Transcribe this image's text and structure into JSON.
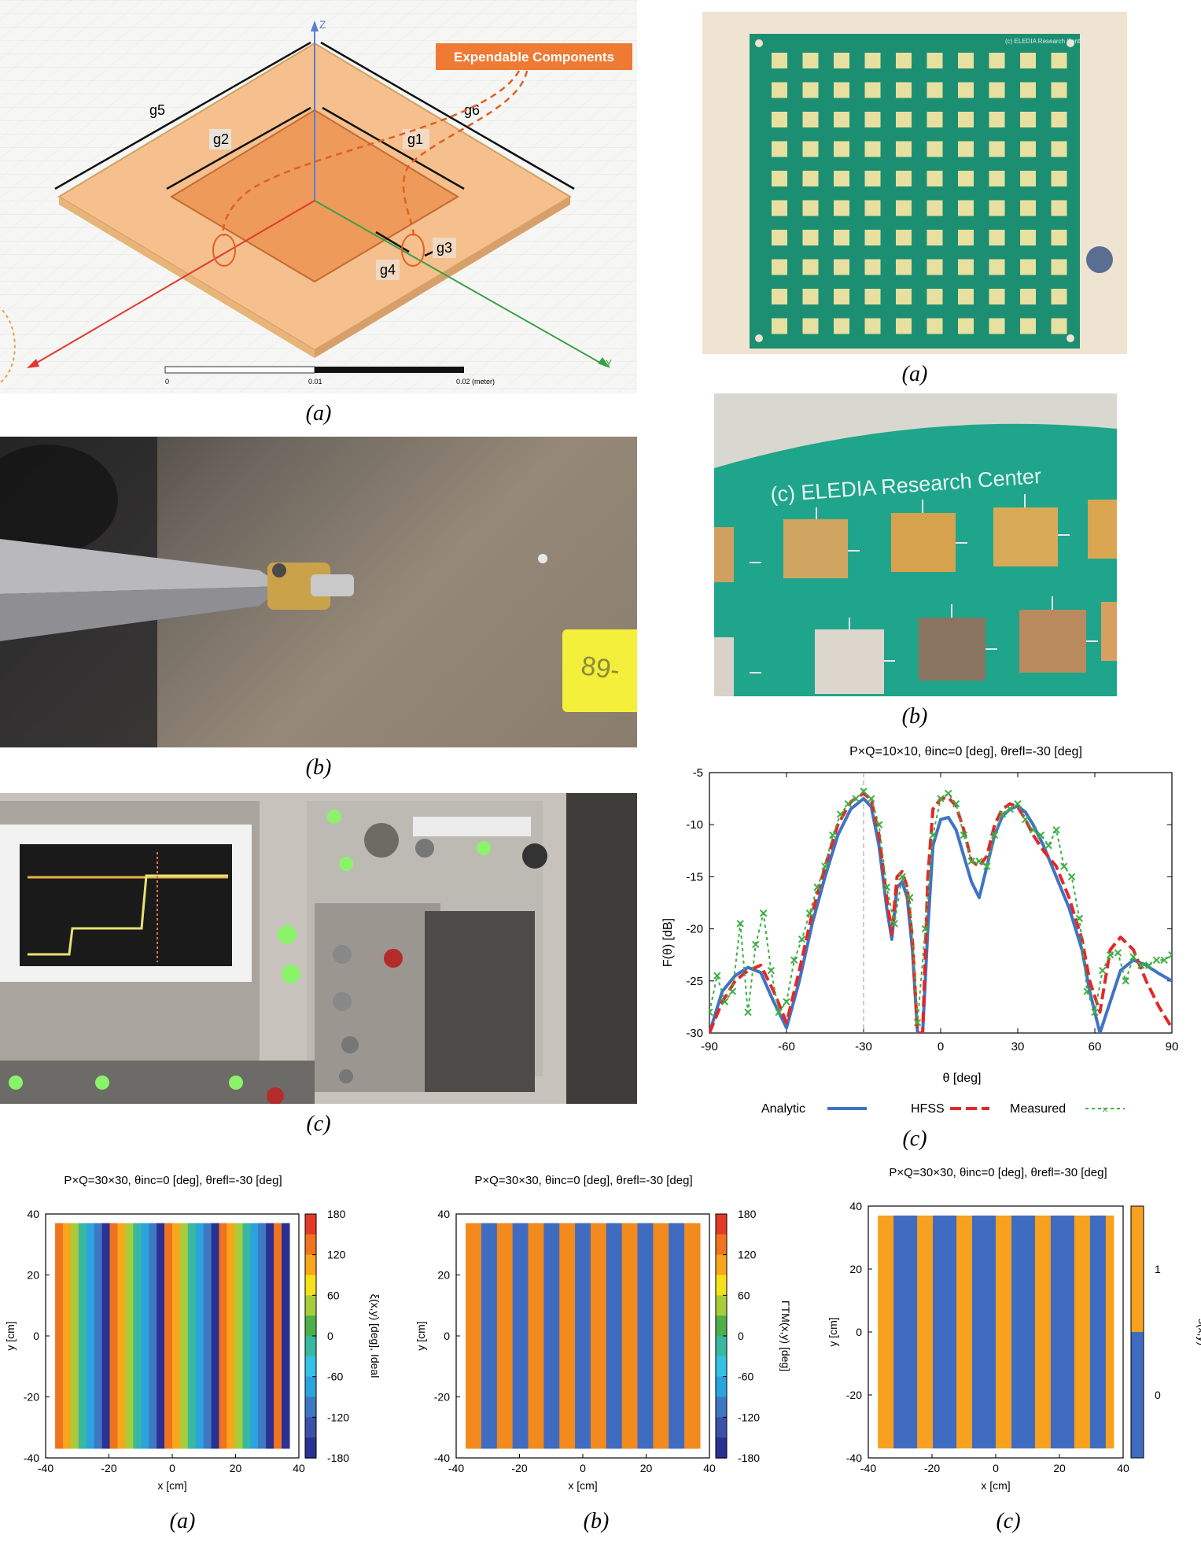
{
  "captions": {
    "top_left_a": "(a)",
    "top_left_b": "(b)",
    "top_left_c": "(c)",
    "top_right_a": "(a)",
    "top_right_b": "(b)",
    "top_right_c": "(c)",
    "bottom_a": "(a)",
    "bottom_b": "(b)",
    "bottom_c": "(c)"
  },
  "cad": {
    "callout": "Expendable Components",
    "labels": [
      "g5",
      "g6",
      "g2",
      "g1",
      "g3",
      "g4"
    ],
    "axis_z": "Z",
    "axis_y": "Y",
    "scale_labels": [
      "0",
      "0.01",
      "0.02 (meter)"
    ]
  },
  "board_text": "(c) ELEDIA Research Center",
  "board_text_small": "(c) ELEDIA Research Center",
  "sticker_text": "89-",
  "colors": {
    "substrate": "#f5c08d",
    "patch": "#ee9a5a",
    "callout_bg": "#ee7a34",
    "pcb_green": "#1c8f73",
    "analytic": "#3f73c4",
    "hfss": "#e32828",
    "measured": "#3cb043",
    "blue_state": "#3f6bc0",
    "orange_state": "#f28a1e"
  },
  "chart_data": [
    {
      "type": "line",
      "title": "P×Q=10×10, θinc=0 [deg], θrefl=-30 [deg]",
      "xlabel": "θ [deg]",
      "ylabel": "F(θ) [dB]",
      "xlim": [
        -90,
        90
      ],
      "ylim": [
        -30,
        -5
      ],
      "xticks": [
        -90,
        -60,
        -30,
        0,
        30,
        60,
        90
      ],
      "yticks": [
        -5,
        -10,
        -15,
        -20,
        -25,
        -30
      ],
      "legend_position": "bottom",
      "series": [
        {
          "name": "Analytic",
          "x": [
            -90,
            -85,
            -80,
            -75,
            -70,
            -65,
            -60,
            -55,
            -50,
            -45,
            -40,
            -35,
            -30,
            -27,
            -24,
            -21,
            -19,
            -17,
            -15,
            -13,
            -11,
            -9,
            -7,
            -5,
            -3,
            0,
            3,
            6,
            9,
            12,
            15,
            18,
            21,
            24,
            27,
            30,
            33,
            36,
            40,
            45,
            50,
            55,
            58,
            62,
            66,
            70,
            75,
            80,
            85,
            90
          ],
          "y": [
            -30,
            -26,
            -24.5,
            -23.7,
            -24.2,
            -27,
            -29.5,
            -25,
            -19.5,
            -15,
            -11,
            -8.5,
            -7.5,
            -8.3,
            -12,
            -18,
            -21,
            -16,
            -15.5,
            -17,
            -22,
            -30,
            -30,
            -20,
            -12,
            -9.5,
            -9.3,
            -10.5,
            -13,
            -15.5,
            -17,
            -14,
            -11,
            -9.2,
            -8.5,
            -8.2,
            -8.8,
            -10,
            -12,
            -15,
            -18,
            -22,
            -26,
            -30,
            -27,
            -24,
            -23,
            -23.5,
            -24.3,
            -25
          ]
        },
        {
          "name": "HFSS",
          "x": [
            -90,
            -85,
            -80,
            -75,
            -70,
            -65,
            -60,
            -55,
            -50,
            -45,
            -40,
            -35,
            -30,
            -27,
            -24,
            -21,
            -19,
            -17,
            -15,
            -13,
            -11,
            -9,
            -7,
            -5,
            -3,
            0,
            3,
            6,
            9,
            12,
            15,
            18,
            21,
            24,
            27,
            30,
            33,
            36,
            40,
            45,
            50,
            55,
            58,
            62,
            66,
            70,
            75,
            80,
            85,
            90
          ],
          "y": [
            -30,
            -27,
            -25,
            -24,
            -23.5,
            -26,
            -29,
            -24,
            -18.5,
            -14,
            -10,
            -7.8,
            -7,
            -7.6,
            -11,
            -17,
            -20.5,
            -15,
            -14.5,
            -16,
            -21,
            -30,
            -30,
            -15,
            -8.5,
            -7.5,
            -7.4,
            -8.2,
            -10.5,
            -13.5,
            -14,
            -13,
            -10,
            -8.5,
            -8,
            -8.3,
            -9.5,
            -11,
            -12.5,
            -14,
            -17,
            -21,
            -25,
            -28,
            -22,
            -20.8,
            -22,
            -25,
            -27.5,
            -29.5
          ]
        },
        {
          "name": "Measured",
          "x": [
            -90,
            -87,
            -84,
            -81,
            -78,
            -75,
            -72,
            -69,
            -66,
            -63,
            -60,
            -57,
            -54,
            -51,
            -48,
            -45,
            -42,
            -39,
            -36,
            -33,
            -30,
            -27,
            -24,
            -21,
            -18,
            -15,
            -12,
            -9,
            -6,
            -3,
            0,
            3,
            6,
            9,
            12,
            15,
            18,
            21,
            24,
            27,
            30,
            33,
            36,
            39,
            42,
            45,
            48,
            51,
            54,
            57,
            60,
            63,
            66,
            69,
            72,
            75,
            78,
            81,
            84,
            87,
            90
          ],
          "y": [
            -28,
            -24.5,
            -27,
            -26,
            -19.5,
            -28,
            -21.5,
            -18.5,
            -24,
            -28,
            -27,
            -23,
            -21,
            -18.5,
            -16,
            -14,
            -11,
            -9,
            -8,
            -7.5,
            -6.8,
            -7.5,
            -10,
            -16,
            -19.5,
            -15,
            -17,
            -29,
            -20,
            -11,
            -7.5,
            -7,
            -8,
            -11,
            -13.5,
            -13.5,
            -14,
            -11,
            -9,
            -8.5,
            -8,
            -9.5,
            -10.5,
            -11,
            -12,
            -10.5,
            -14,
            -15,
            -19,
            -26,
            -28,
            -24,
            -22.5,
            -22.3,
            -25,
            -22.7,
            -23.5,
            -23.5,
            -23,
            -23,
            -22.5
          ]
        }
      ]
    },
    {
      "type": "heatmap",
      "title": "P×Q=30×30, θinc=0 [deg], θrefl=-30 [deg]",
      "xlabel": "x [cm]",
      "ylabel": "y [cm]",
      "colorbar_label": "ξ(x,y) [deg], Ideal",
      "xlim": [
        -40,
        40
      ],
      "ylim": [
        -40,
        40
      ],
      "xticks": [
        -40,
        -20,
        0,
        20,
        40
      ],
      "yticks": [
        40,
        20,
        0,
        -20,
        -40
      ],
      "cbar_ticks": [
        180,
        120,
        60,
        0,
        -60,
        -120,
        -180
      ],
      "x_extent": [
        -37,
        37
      ],
      "y_extent": [
        -37,
        37
      ],
      "column_values_deg": [
        150,
        100,
        40,
        -5,
        -60,
        -110,
        -165,
        150,
        100,
        40,
        -5,
        -60,
        -110,
        -165,
        150,
        100,
        40,
        -5,
        -60,
        -110,
        -165,
        150,
        100,
        40,
        -5,
        -60,
        -110,
        -165,
        150,
        -150
      ]
    },
    {
      "type": "heatmap",
      "title": "P×Q=30×30, θinc=0 [deg], θrefl=-30 [deg]",
      "xlabel": "x [cm]",
      "ylabel": "y [cm]",
      "colorbar_label": "ΓTM(x,y) [deg]",
      "xlim": [
        -40,
        40
      ],
      "ylim": [
        -40,
        40
      ],
      "xticks": [
        -40,
        -20,
        0,
        20,
        40
      ],
      "yticks": [
        40,
        20,
        0,
        -20,
        -40
      ],
      "cbar_ticks": [
        180,
        120,
        60,
        0,
        -60,
        -120,
        -180
      ],
      "x_extent": [
        -37,
        37
      ],
      "y_extent": [
        -37,
        37
      ],
      "column_states": [
        1,
        1,
        0,
        0,
        1,
        1,
        0,
        0,
        1,
        1,
        0,
        0,
        1,
        1,
        0,
        0,
        1,
        1,
        0,
        0,
        1,
        1,
        0,
        0,
        1,
        1,
        0,
        0,
        1,
        1
      ]
    },
    {
      "type": "heatmap",
      "title": "P×Q=30×30, θinc=0 [deg], θrefl=-30 [deg]",
      "xlabel": "x [cm]",
      "ylabel": "y [cm]",
      "colorbar_label": "s(x,y)",
      "xlim": [
        -40,
        40
      ],
      "ylim": [
        -40,
        40
      ],
      "xticks": [
        -40,
        -20,
        0,
        20,
        40
      ],
      "yticks": [
        40,
        20,
        0,
        -20,
        -40
      ],
      "cbar_ticks": [
        1,
        0
      ],
      "x_extent": [
        -37,
        37
      ],
      "y_extent": [
        -37,
        37
      ],
      "column_states": [
        1,
        1,
        0,
        0,
        0,
        1,
        1,
        0,
        0,
        0,
        1,
        1,
        0,
        0,
        0,
        1,
        1,
        0,
        0,
        0,
        1,
        1,
        0,
        0,
        0,
        1,
        1,
        0,
        0,
        1
      ]
    }
  ]
}
